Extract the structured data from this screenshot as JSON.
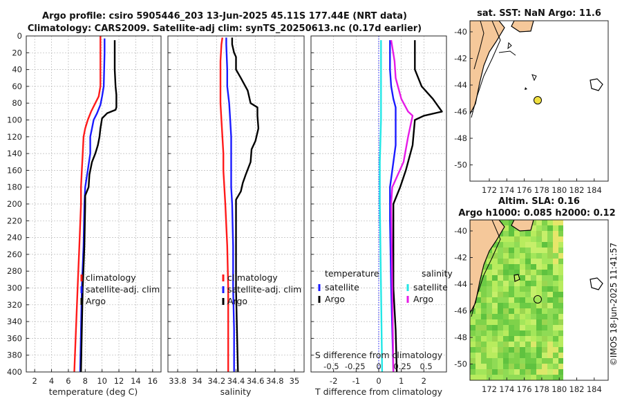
{
  "header": {
    "title_line1": "Argo profile: csiro 5905446_203 13-Jun-2025 45.11S 177.44E (NRT data)",
    "title_line2": "Climatology: CARS2009. Satellite-adj clim: synTS_20250613.nc (0.17d earlier)"
  },
  "colors": {
    "clim": "#ff1a1a",
    "sat": "#1a1aff",
    "argo": "#000000",
    "cyan": "#22e6e6",
    "magenta": "#e61ae6",
    "land": "#f5c89a",
    "sst_dot": "#f0e040"
  },
  "depth_ticks": [
    0,
    20,
    40,
    60,
    80,
    100,
    120,
    140,
    160,
    180,
    200,
    220,
    240,
    260,
    280,
    300,
    320,
    340,
    360,
    380,
    400
  ],
  "chart_data": [
    {
      "type": "line",
      "panel": "temperature",
      "xlabel": "temperature (deg C)",
      "ylabel": "",
      "xlim": [
        1,
        17
      ],
      "ylim": [
        400,
        0
      ],
      "xticks": [
        2,
        4,
        6,
        8,
        10,
        12,
        14,
        16
      ],
      "legend": [
        "climatology",
        "satellite-adj. clim",
        "Argo"
      ],
      "series": [
        {
          "name": "climatology",
          "color": "#ff1a1a",
          "points": [
            [
              9.8,
              0
            ],
            [
              9.8,
              20
            ],
            [
              9.8,
              60
            ],
            [
              9.6,
              72
            ],
            [
              9.2,
              80
            ],
            [
              8.7,
              90
            ],
            [
              8.3,
              100
            ],
            [
              8.0,
              110
            ],
            [
              7.8,
              120
            ],
            [
              7.7,
              140
            ],
            [
              7.6,
              160
            ],
            [
              7.5,
              180
            ],
            [
              7.5,
              200
            ],
            [
              7.3,
              250
            ],
            [
              7.1,
              300
            ],
            [
              6.9,
              350
            ],
            [
              6.7,
              400
            ]
          ]
        },
        {
          "name": "satellite-adj. clim",
          "color": "#1a1aff",
          "points": [
            [
              10.3,
              3
            ],
            [
              10.3,
              20
            ],
            [
              10.2,
              60
            ],
            [
              10.0,
              72
            ],
            [
              9.8,
              82
            ],
            [
              9.4,
              92
            ],
            [
              9.0,
              100
            ],
            [
              8.8,
              110
            ],
            [
              8.6,
              120
            ],
            [
              8.6,
              140
            ],
            [
              8.3,
              160
            ],
            [
              8.0,
              180
            ],
            [
              7.9,
              200
            ],
            [
              7.8,
              250
            ],
            [
              7.6,
              300
            ],
            [
              7.5,
              350
            ],
            [
              7.4,
              400
            ]
          ]
        },
        {
          "name": "Argo",
          "color": "#000000",
          "points": [
            [
              11.5,
              5
            ],
            [
              11.5,
              20
            ],
            [
              11.5,
              40
            ],
            [
              11.6,
              60
            ],
            [
              11.7,
              70
            ],
            [
              11.7,
              85
            ],
            [
              11.6,
              88
            ],
            [
              10.6,
              92
            ],
            [
              10.0,
              98
            ],
            [
              9.8,
              110
            ],
            [
              9.7,
              120
            ],
            [
              9.5,
              130
            ],
            [
              9.2,
              140
            ],
            [
              8.8,
              150
            ],
            [
              8.5,
              165
            ],
            [
              8.4,
              180
            ],
            [
              8.0,
              190
            ],
            [
              8.0,
              200
            ],
            [
              7.9,
              250
            ],
            [
              7.7,
              300
            ],
            [
              7.6,
              350
            ],
            [
              7.5,
              400
            ]
          ]
        }
      ]
    },
    {
      "type": "line",
      "panel": "salinity",
      "xlabel": "salinity",
      "ylabel": "",
      "xlim": [
        33.7,
        35.1
      ],
      "ylim": [
        400,
        0
      ],
      "xticks": [
        33.8,
        34,
        34.2,
        34.4,
        34.6,
        34.8,
        35
      ],
      "xtick_labels": [
        "33.8",
        "34",
        "34.2",
        "34.4",
        "34.6",
        "34.8",
        "35"
      ],
      "legend": [
        "climatology",
        "satellite-adj. clim",
        "Argo"
      ],
      "series": [
        {
          "name": "climatology",
          "color": "#ff1a1a",
          "points": [
            [
              34.26,
              2
            ],
            [
              34.25,
              10
            ],
            [
              34.24,
              30
            ],
            [
              34.24,
              60
            ],
            [
              34.24,
              80
            ],
            [
              34.25,
              100
            ],
            [
              34.26,
              120
            ],
            [
              34.27,
              140
            ],
            [
              34.27,
              160
            ],
            [
              34.28,
              180
            ],
            [
              34.29,
              200
            ],
            [
              34.31,
              250
            ],
            [
              34.32,
              300
            ],
            [
              34.32,
              350
            ],
            [
              34.32,
              400
            ]
          ]
        },
        {
          "name": "satellite-adj. clim",
          "color": "#1a1aff",
          "points": [
            [
              34.3,
              2
            ],
            [
              34.3,
              10
            ],
            [
              34.31,
              40
            ],
            [
              34.31,
              60
            ],
            [
              34.33,
              80
            ],
            [
              34.34,
              100
            ],
            [
              34.35,
              120
            ],
            [
              34.35,
              140
            ],
            [
              34.35,
              160
            ],
            [
              34.35,
              180
            ],
            [
              34.36,
              200
            ],
            [
              34.37,
              250
            ],
            [
              34.37,
              300
            ],
            [
              34.38,
              350
            ],
            [
              34.38,
              400
            ]
          ]
        },
        {
          "name": "Argo",
          "color": "#000000",
          "points": [
            [
              34.36,
              2
            ],
            [
              34.36,
              10
            ],
            [
              34.38,
              20
            ],
            [
              34.4,
              25
            ],
            [
              34.4,
              40
            ],
            [
              34.45,
              50
            ],
            [
              34.52,
              65
            ],
            [
              34.55,
              80
            ],
            [
              34.62,
              85
            ],
            [
              34.62,
              95
            ],
            [
              34.63,
              110
            ],
            [
              34.6,
              125
            ],
            [
              34.56,
              135
            ],
            [
              34.55,
              150
            ],
            [
              34.5,
              165
            ],
            [
              34.47,
              175
            ],
            [
              34.45,
              185
            ],
            [
              34.4,
              195
            ],
            [
              34.4,
              220
            ],
            [
              34.4,
              250
            ],
            [
              34.4,
              300
            ],
            [
              34.41,
              350
            ],
            [
              34.42,
              400
            ]
          ]
        }
      ]
    },
    {
      "type": "line",
      "panel": "differences",
      "xlabel": "T difference from climatology",
      "xlabel_top": "S difference from climatology",
      "xlim": [
        -3,
        3
      ],
      "ylim": [
        400,
        0
      ],
      "xticks": [
        -2,
        -1,
        0,
        1,
        2
      ],
      "s_ticks_labels": [
        "-0.5",
        "-0.25",
        "0",
        "0.25",
        "0.5"
      ],
      "legend_left_title": "temperature",
      "legend_right_title": "salinity",
      "legend_left": [
        "satellite",
        "Argo"
      ],
      "legend_right": [
        "satellite",
        "Argo"
      ],
      "series": [
        {
          "name": "T satellite",
          "color": "#1a1aff",
          "points": [
            [
              0.5,
              5
            ],
            [
              0.5,
              40
            ],
            [
              0.55,
              60
            ],
            [
              0.65,
              75
            ],
            [
              0.75,
              85
            ],
            [
              0.75,
              100
            ],
            [
              0.75,
              130
            ],
            [
              0.6,
              160
            ],
            [
              0.5,
              180
            ],
            [
              0.5,
              220
            ],
            [
              0.55,
              300
            ],
            [
              0.6,
              350
            ],
            [
              0.65,
              400
            ]
          ]
        },
        {
          "name": "T Argo",
          "color": "#000000",
          "points": [
            [
              1.6,
              5
            ],
            [
              1.6,
              40
            ],
            [
              1.9,
              60
            ],
            [
              2.4,
              75
            ],
            [
              2.8,
              90
            ],
            [
              2.0,
              95
            ],
            [
              1.6,
              100
            ],
            [
              1.5,
              130
            ],
            [
              1.2,
              160
            ],
            [
              0.95,
              180
            ],
            [
              0.65,
              200
            ],
            [
              0.65,
              300
            ],
            [
              0.75,
              350
            ],
            [
              0.8,
              400
            ]
          ]
        },
        {
          "name": "S satellite",
          "color": "#22e6e6",
          "points": [
            [
              0.1,
              5
            ],
            [
              0.1,
              100
            ],
            [
              0.05,
              150
            ],
            [
              0.05,
              200
            ],
            [
              0.1,
              300
            ],
            [
              0.15,
              400
            ]
          ]
        },
        {
          "name": "S Argo",
          "color": "#e61ae6",
          "points": [
            [
              0.55,
              5
            ],
            [
              0.7,
              30
            ],
            [
              0.75,
              50
            ],
            [
              1.0,
              75
            ],
            [
              1.3,
              90
            ],
            [
              1.5,
              95
            ],
            [
              1.3,
              120
            ],
            [
              1.1,
              150
            ],
            [
              0.6,
              180
            ],
            [
              0.55,
              200
            ],
            [
              0.6,
              300
            ],
            [
              0.65,
              400
            ]
          ]
        }
      ]
    }
  ],
  "maps": {
    "sst": {
      "title": "sat. SST: NaN Argo: 11.6",
      "yticks": [
        "-40",
        "-42",
        "-44",
        "-46",
        "-48",
        "-50"
      ],
      "xticks": [
        "172",
        "174",
        "176",
        "178",
        "180",
        "182",
        "184"
      ]
    },
    "sla": {
      "title_line1": "Altim. SLA: 0.16",
      "title_line2": "Argo h1000: 0.085 h2000: 0.12",
      "yticks": [
        "-40",
        "-42",
        "-44",
        "-46",
        "-48",
        "-50"
      ],
      "xticks": [
        "172",
        "174",
        "176",
        "178",
        "180",
        "182",
        "184"
      ]
    }
  },
  "stamp": "©IMOS 18-Jun-2025 11:41:57"
}
